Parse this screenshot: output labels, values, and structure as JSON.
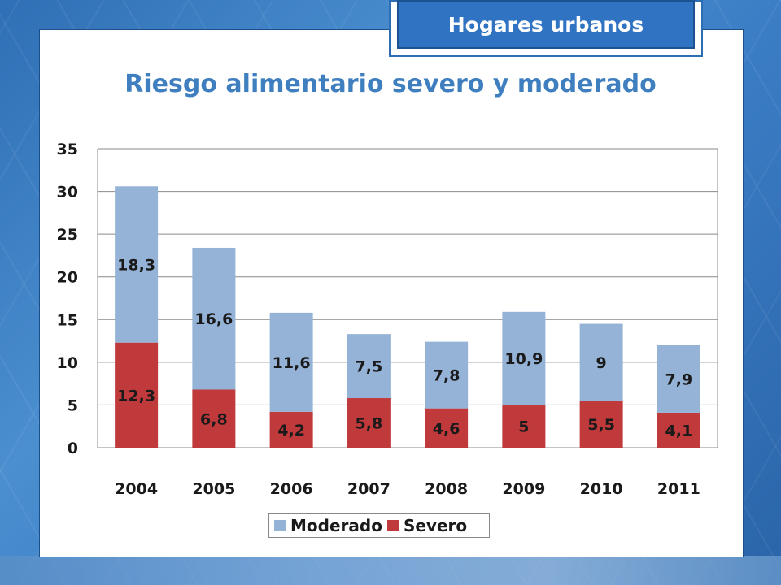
{
  "header": {
    "badge": "Hogares urbanos"
  },
  "chart_data": {
    "type": "bar",
    "stacked": true,
    "title": "Riesgo alimentario severo y moderado",
    "categories": [
      "2004",
      "2005",
      "2006",
      "2007",
      "2008",
      "2009",
      "2010",
      "2011"
    ],
    "series": [
      {
        "name": "Severo",
        "color": "#c0393b",
        "values": [
          12.3,
          6.8,
          4.2,
          5.8,
          4.6,
          5,
          5.5,
          4.1
        ],
        "labels": [
          "12,3",
          "6,8",
          "4,2",
          "5,8",
          "4,6",
          "5",
          "5,5",
          "4,1"
        ]
      },
      {
        "name": "Moderado",
        "color": "#95b3d7",
        "values": [
          18.3,
          16.6,
          11.6,
          7.5,
          7.8,
          10.9,
          9,
          7.9
        ],
        "labels": [
          "18,3",
          "16,6",
          "11,6",
          "7,5",
          "7,8",
          "10,9",
          "9",
          "7,9"
        ]
      }
    ],
    "yticks": [
      "0",
      "5",
      "10",
      "15",
      "20",
      "25",
      "30",
      "35"
    ],
    "ylim": [
      0,
      35
    ],
    "grid": true,
    "legend_position": "bottom"
  }
}
